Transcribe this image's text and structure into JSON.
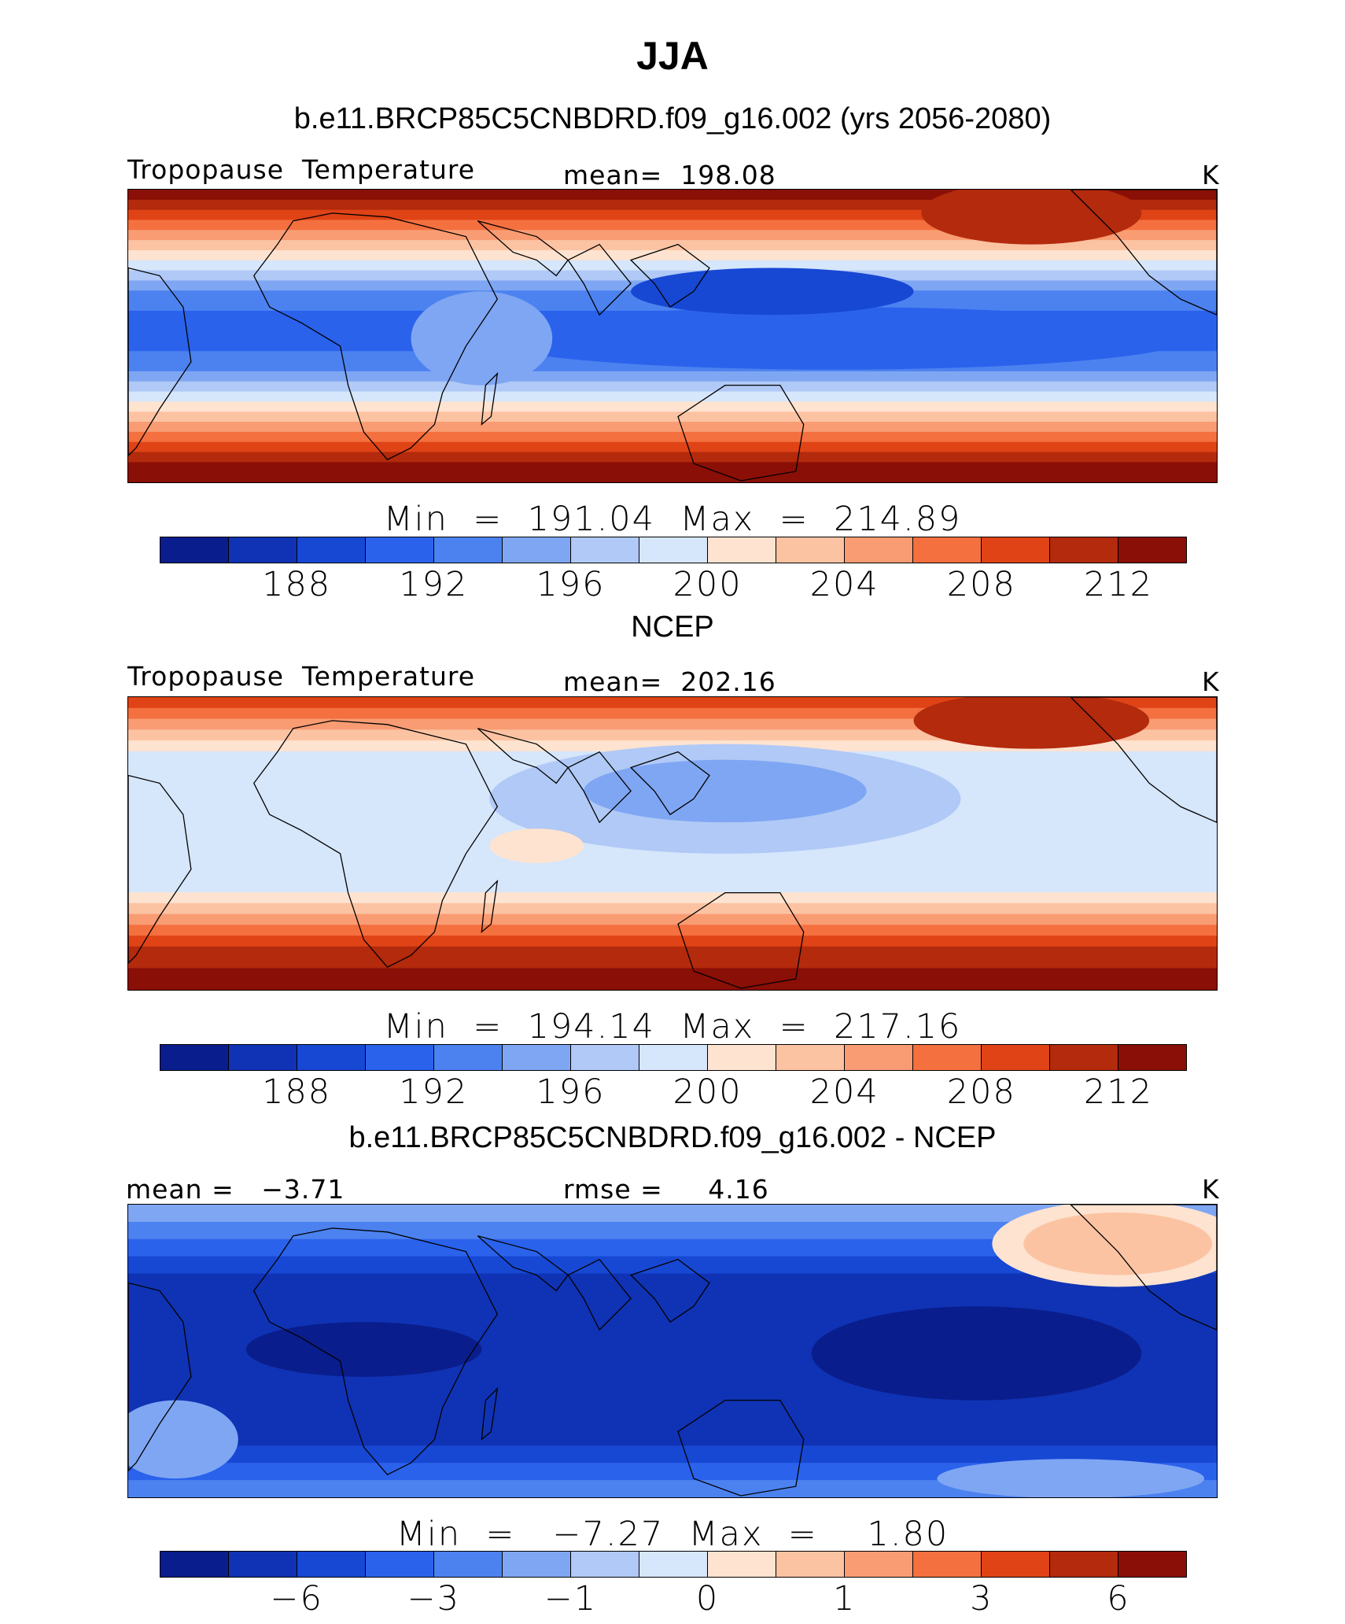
{
  "title": "JJA",
  "palette": [
    "#0a1d8c",
    "#0f33b4",
    "#1748d4",
    "#2a62ec",
    "#4c82f0",
    "#7fa6f3",
    "#b0c9f6",
    "#d6e6fb",
    "#fde3d0",
    "#fcc3a3",
    "#f99c73",
    "#f4703f",
    "#df4316",
    "#b32a0c",
    "#8a0f06"
  ],
  "panels": [
    {
      "title": "b.e11.BRCP85C5CNBDRD.f09_g16.002 (yrs 2056-2080)",
      "left_label": "Tropopause  Temperature",
      "center_label": "mean=  198.08",
      "right_label": "K",
      "minmax": "Min  =  191.04  Max  =  214.89",
      "ticks": [
        "188",
        "192",
        "196",
        "200",
        "204",
        "208",
        "212"
      ]
    },
    {
      "title": "NCEP",
      "left_label": "Tropopause  Temperature",
      "center_label": "mean=  202.16",
      "right_label": "K",
      "minmax": "Min  =  194.14  Max  =  217.16",
      "ticks": [
        "188",
        "192",
        "196",
        "200",
        "204",
        "208",
        "212"
      ]
    },
    {
      "title": "b.e11.BRCP85C5CNBDRD.f09_g16.002 - NCEP",
      "left_label": "mean =   −3.71",
      "center_label": "rmse =     4.16",
      "right_label": "K",
      "minmax": "Min  =   −7.27  Max  =    1.80",
      "ticks": [
        "−6",
        "−3",
        "−1",
        "0",
        "1",
        "3",
        "6"
      ]
    }
  ],
  "chart_data": [
    {
      "type": "heatmap",
      "title": "b.e11.BRCP85C5CNBDRD.f09_g16.002 (yrs 2056-2080)",
      "field": "Tropopause Temperature",
      "units": "K",
      "mean": 198.08,
      "min": 191.04,
      "max": 214.89,
      "colorbar_levels": [
        186,
        188,
        190,
        192,
        194,
        196,
        198,
        200,
        202,
        204,
        206,
        208,
        210,
        212,
        214
      ],
      "colorbar_ticks": [
        188,
        192,
        196,
        200,
        204,
        208,
        212
      ]
    },
    {
      "type": "heatmap",
      "title": "NCEP",
      "field": "Tropopause Temperature",
      "units": "K",
      "mean": 202.16,
      "min": 194.14,
      "max": 217.16,
      "colorbar_levels": [
        186,
        188,
        190,
        192,
        194,
        196,
        198,
        200,
        202,
        204,
        206,
        208,
        210,
        212,
        214
      ],
      "colorbar_ticks": [
        188,
        192,
        196,
        200,
        204,
        208,
        212
      ]
    },
    {
      "type": "heatmap",
      "title": "b.e11.BRCP85C5CNBDRD.f09_g16.002 - NCEP",
      "units": "K",
      "mean": -3.71,
      "rmse": 4.16,
      "min": -7.27,
      "max": 1.8,
      "colorbar_ticks": [
        -6,
        -3,
        -1,
        0,
        1,
        3,
        6
      ]
    }
  ]
}
